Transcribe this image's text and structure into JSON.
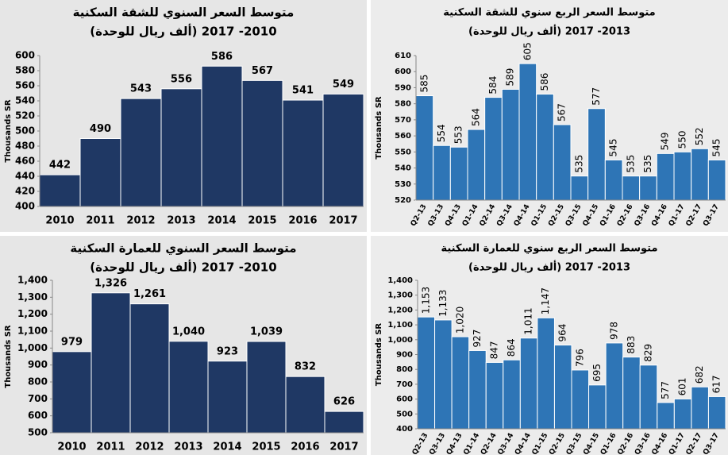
{
  "chart_data": [
    {
      "type": "bar",
      "title": "متوسط السعر السنوي للشقة السكنية",
      "subtitle": "(ألف ريال للوحدة)  2010- 2017",
      "y_label": "Thousands SR",
      "categories": [
        "2010",
        "2011",
        "2012",
        "2013",
        "2014",
        "2015",
        "2016",
        "2017"
      ],
      "values": [
        442,
        490,
        543,
        556,
        586,
        567,
        541,
        549
      ],
      "color": "#1f3864",
      "ylim": [
        400,
        600
      ],
      "yticks": [
        400,
        420,
        440,
        460,
        480,
        500,
        520,
        540,
        560,
        580,
        600
      ]
    },
    {
      "type": "bar",
      "title": "متوسط السعر الربع سنوي للشقة السكنية",
      "subtitle": "(ألف ريال للوحدة) 2013- 2017",
      "y_label": "Thousands SR",
      "categories": [
        "Q2-13",
        "Q3-13",
        "Q4-13",
        "Q1-14",
        "Q2-14",
        "Q3-14",
        "Q4-14",
        "Q1-15",
        "Q2-15",
        "Q3-15",
        "Q4-15",
        "Q1-16",
        "Q2-16",
        "Q3-16",
        "Q4-16",
        "Q1-17",
        "Q2-17",
        "Q3-17"
      ],
      "values": [
        585,
        554,
        553,
        564,
        584,
        589,
        605,
        586,
        567,
        535,
        577,
        545,
        535,
        535,
        549,
        550,
        552,
        545
      ],
      "color": "#2e75b6",
      "ylim": [
        520,
        610
      ],
      "yticks": [
        520,
        530,
        540,
        550,
        560,
        570,
        580,
        590,
        600,
        610
      ]
    },
    {
      "type": "bar",
      "title": "متوسط السعر السنوي للعمارة السكنية",
      "subtitle": "(ألف ريال للوحدة)  2010- 2017",
      "y_label": "Thousands SR",
      "categories": [
        "2010",
        "2011",
        "2012",
        "2013",
        "2014",
        "2015",
        "2016",
        "2017"
      ],
      "values": [
        979,
        1326,
        1261,
        1040,
        923,
        1039,
        832,
        626
      ],
      "value_labels": [
        "979",
        "1,326",
        "1,261",
        "1,040",
        "923",
        "1,039",
        "832",
        "626"
      ],
      "color": "#1f3864",
      "ylim": [
        500,
        1400
      ],
      "yticks": [
        500,
        600,
        700,
        800,
        900,
        {
          "value": 1000,
          "label": "1,000"
        },
        {
          "value": 1100,
          "label": "1,100"
        },
        {
          "value": 1200,
          "label": "1,200"
        },
        {
          "value": 1300,
          "label": "1,300"
        },
        {
          "value": 1400,
          "label": "1,400"
        }
      ]
    },
    {
      "type": "bar",
      "title": "متوسط السعر الربع سنوي للعمارة السكنية",
      "subtitle": "(ألف ريال للوحدة) 2013- 2017",
      "y_label": "Thousands SR",
      "categories": [
        "Q2-13",
        "Q3-13",
        "Q4-13",
        "Q1-14",
        "Q2-14",
        "Q3-14",
        "Q4-14",
        "Q1-15",
        "Q2-15",
        "Q3-15",
        "Q4-15",
        "Q1-16",
        "Q2-16",
        "Q3-16",
        "Q4-16",
        "Q1-17",
        "Q2-17",
        "Q3-17"
      ],
      "values": [
        1153,
        1133,
        1020,
        927,
        847,
        864,
        1011,
        1147,
        964,
        796,
        695,
        978,
        883,
        829,
        577,
        601,
        682,
        617
      ],
      "value_labels": [
        "1,153",
        "1,133",
        "1,020",
        "927",
        "847",
        "864",
        "1,011",
        "1,147",
        "964",
        "796",
        "695",
        "978",
        "883",
        "829",
        "577",
        "601",
        "682",
        "617"
      ],
      "color": "#2e75b6",
      "ylim": [
        400,
        1400
      ],
      "yticks": [
        400,
        500,
        600,
        700,
        800,
        900,
        {
          "value": 1000,
          "label": "1,000"
        },
        {
          "value": 1100,
          "label": "1,100"
        },
        {
          "value": 1200,
          "label": "1,200"
        },
        {
          "value": 1300,
          "label": "1,300"
        },
        {
          "value": 1400,
          "label": "1,400"
        }
      ]
    }
  ]
}
